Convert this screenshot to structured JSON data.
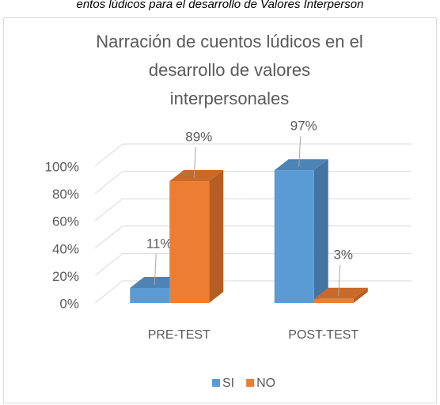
{
  "chart_data": {
    "type": "bar3d",
    "caption": "entos lúdicos para el desarrollo de Valores Interperson",
    "title": [
      "Narración de cuentos lúdicos en el",
      "desarrollo de valores",
      "interpersonales"
    ],
    "categories": [
      "PRE-TEST",
      "POST-TEST"
    ],
    "series": [
      {
        "name": "SI",
        "color": "#5b9bd5",
        "values": [
          11,
          97
        ],
        "value_labels": [
          "11%",
          "97%"
        ]
      },
      {
        "name": "NO",
        "color": "#ed7d31",
        "values": [
          89,
          3
        ],
        "value_labels": [
          "89%",
          "3%"
        ]
      }
    ],
    "ylim": [
      0,
      100
    ],
    "yticks": [
      {
        "value": 0,
        "label": "0%"
      },
      {
        "value": 20,
        "label": "20%"
      },
      {
        "value": 40,
        "label": "40%"
      },
      {
        "value": 60,
        "label": "60%"
      },
      {
        "value": 80,
        "label": "80%"
      },
      {
        "value": 100,
        "label": "100%"
      }
    ],
    "grid": true,
    "legend": "bottom"
  }
}
